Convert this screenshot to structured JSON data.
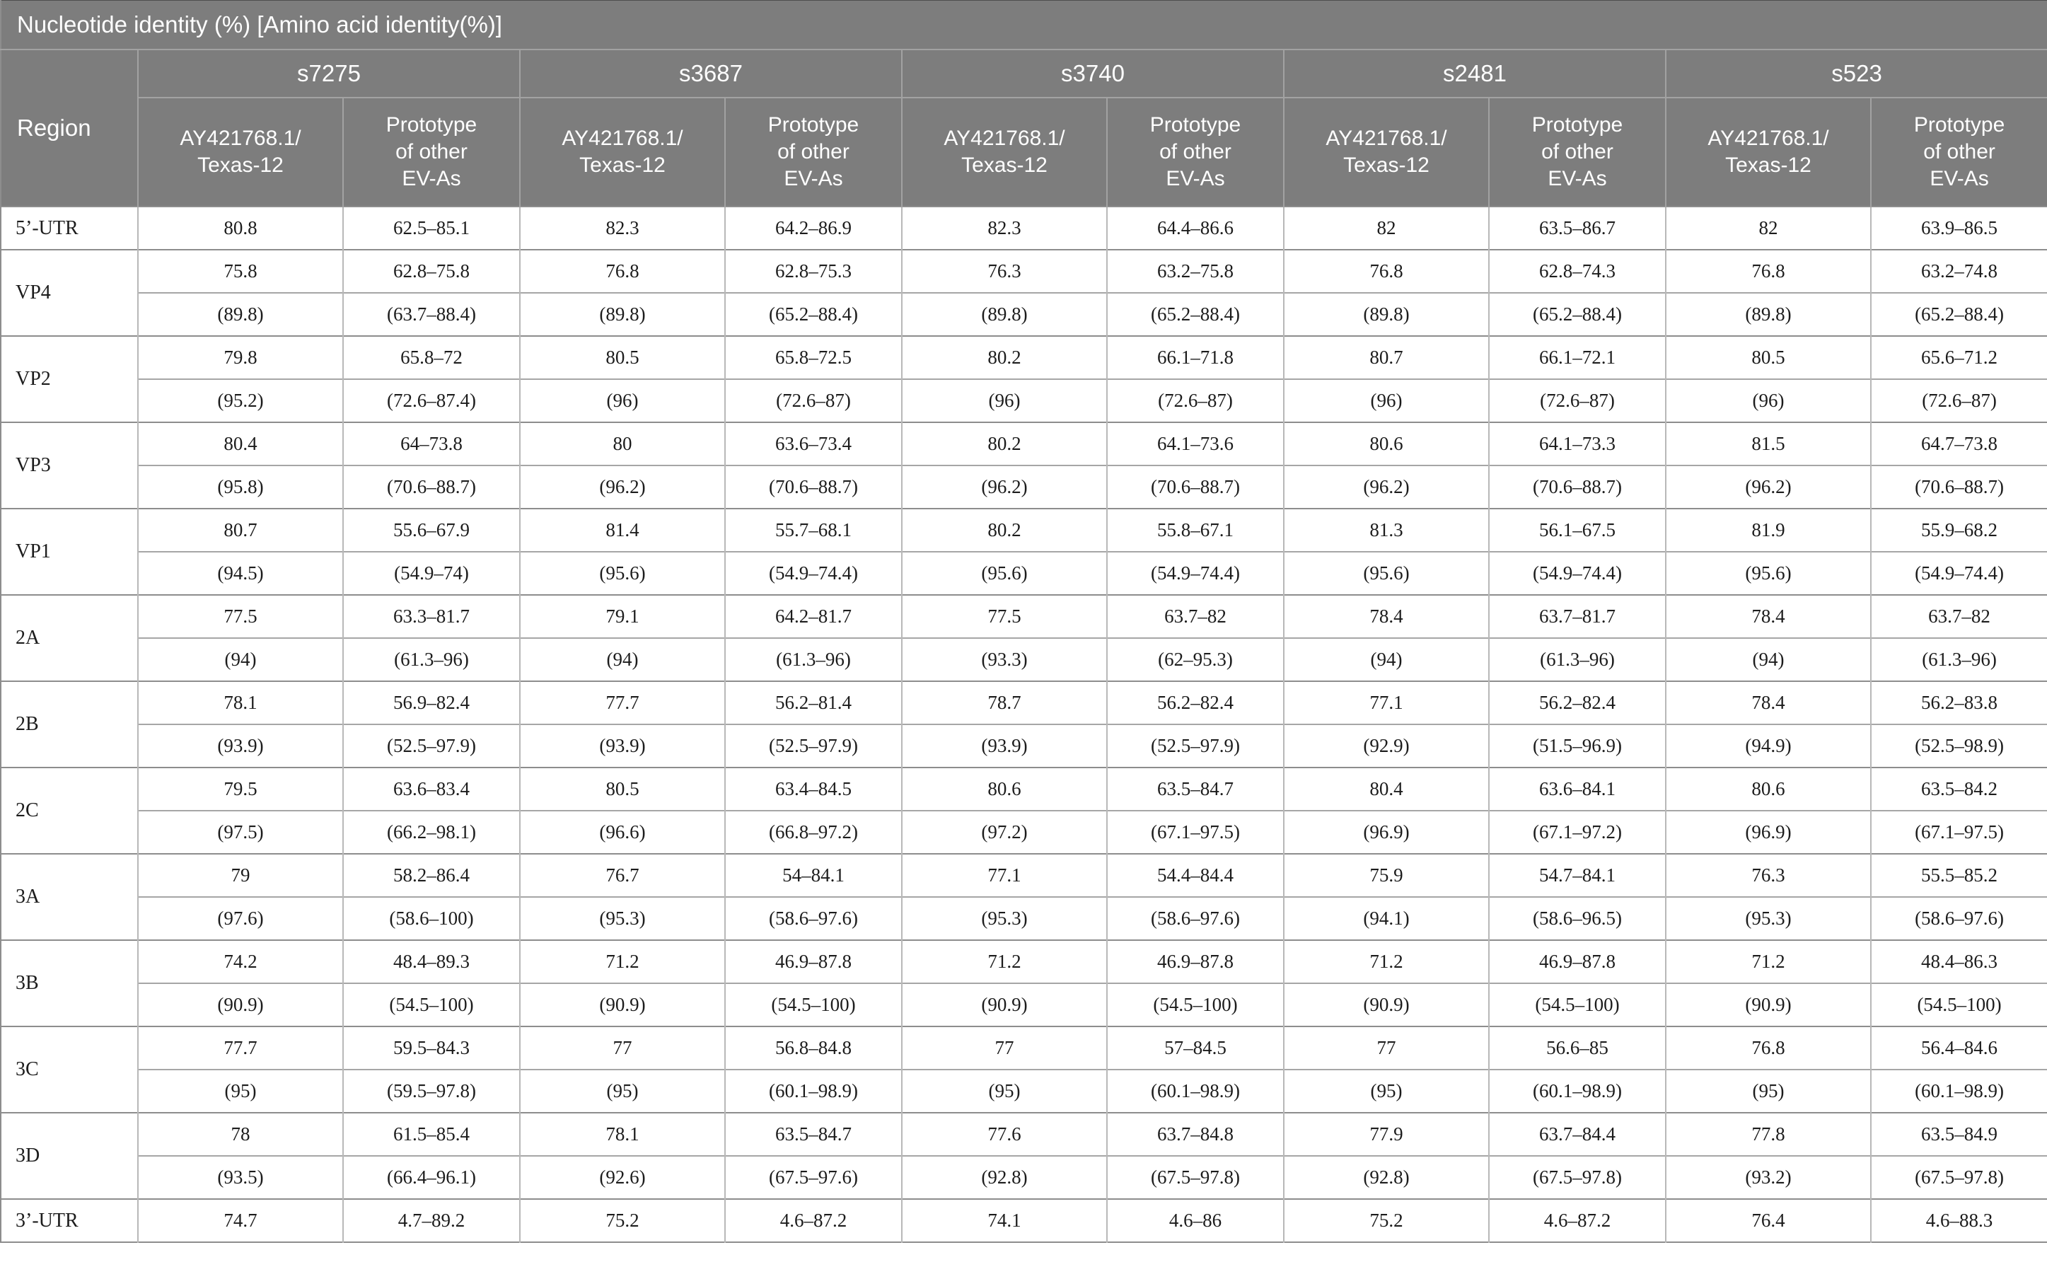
{
  "title": "Nucleotide identity (%) [Amino acid identity(%)]",
  "colors": {
    "header_bg": "#7d7d7d",
    "header_text": "#ffffff",
    "body_text": "#1c1c1c",
    "grid_group_line": "#8d8d8d",
    "grid_inner_line": "#a6a6a6",
    "grid_vertical_line": "#b8b8b8"
  },
  "table": {
    "region_header": "Region",
    "samples": [
      "s7275",
      "s3687",
      "s3740",
      "s2481",
      "s523"
    ],
    "sub_headers": [
      "AY421768.1/\nTexas-12",
      "Prototype\nof other\nEV-As"
    ],
    "rows": [
      {
        "region": "5’-UTR",
        "nt": [
          "80.8",
          "62.5–85.1",
          "82.3",
          "64.2–86.9",
          "82.3",
          "64.4–86.6",
          "82",
          "63.5–86.7",
          "82",
          "63.9–86.5"
        ]
      },
      {
        "region": "VP4",
        "nt": [
          "75.8",
          "62.8–75.8",
          "76.8",
          "62.8–75.3",
          "76.3",
          "63.2–75.8",
          "76.8",
          "62.8–74.3",
          "76.8",
          "63.2–74.8"
        ],
        "aa": [
          "(89.8)",
          "(63.7–88.4)",
          "(89.8)",
          "(65.2–88.4)",
          "(89.8)",
          "(65.2–88.4)",
          "(89.8)",
          "(65.2–88.4)",
          "(89.8)",
          "(65.2–88.4)"
        ]
      },
      {
        "region": "VP2",
        "nt": [
          "79.8",
          "65.8–72",
          "80.5",
          "65.8–72.5",
          "80.2",
          "66.1–71.8",
          "80.7",
          "66.1–72.1",
          "80.5",
          "65.6–71.2"
        ],
        "aa": [
          "(95.2)",
          "(72.6–87.4)",
          "(96)",
          "(72.6–87)",
          "(96)",
          "(72.6–87)",
          "(96)",
          "(72.6–87)",
          "(96)",
          "(72.6–87)"
        ]
      },
      {
        "region": "VP3",
        "nt": [
          "80.4",
          "64–73.8",
          "80",
          "63.6–73.4",
          "80.2",
          "64.1–73.6",
          "80.6",
          "64.1–73.3",
          "81.5",
          "64.7–73.8"
        ],
        "aa": [
          "(95.8)",
          "(70.6–88.7)",
          "(96.2)",
          "(70.6–88.7)",
          "(96.2)",
          "(70.6–88.7)",
          "(96.2)",
          "(70.6–88.7)",
          "(96.2)",
          "(70.6–88.7)"
        ]
      },
      {
        "region": "VP1",
        "nt": [
          "80.7",
          "55.6–67.9",
          "81.4",
          "55.7–68.1",
          "80.2",
          "55.8–67.1",
          "81.3",
          "56.1–67.5",
          "81.9",
          "55.9–68.2"
        ],
        "aa": [
          "(94.5)",
          "(54.9–74)",
          "(95.6)",
          "(54.9–74.4)",
          "(95.6)",
          "(54.9–74.4)",
          "(95.6)",
          "(54.9–74.4)",
          "(95.6)",
          "(54.9–74.4)"
        ]
      },
      {
        "region": "2A",
        "nt": [
          "77.5",
          "63.3–81.7",
          "79.1",
          "64.2–81.7",
          "77.5",
          "63.7–82",
          "78.4",
          "63.7–81.7",
          "78.4",
          "63.7–82"
        ],
        "aa": [
          "(94)",
          "(61.3–96)",
          "(94)",
          "(61.3–96)",
          "(93.3)",
          "(62–95.3)",
          "(94)",
          "(61.3–96)",
          "(94)",
          "(61.3–96)"
        ]
      },
      {
        "region": "2B",
        "nt": [
          "78.1",
          "56.9–82.4",
          "77.7",
          "56.2–81.4",
          "78.7",
          "56.2–82.4",
          "77.1",
          "56.2–82.4",
          "78.4",
          "56.2–83.8"
        ],
        "aa": [
          "(93.9)",
          "(52.5–97.9)",
          "(93.9)",
          "(52.5–97.9)",
          "(93.9)",
          "(52.5–97.9)",
          "(92.9)",
          "(51.5–96.9)",
          "(94.9)",
          "(52.5–98.9)"
        ]
      },
      {
        "region": "2C",
        "nt": [
          "79.5",
          "63.6–83.4",
          "80.5",
          "63.4–84.5",
          "80.6",
          "63.5–84.7",
          "80.4",
          "63.6–84.1",
          "80.6",
          "63.5–84.2"
        ],
        "aa": [
          "(97.5)",
          "(66.2–98.1)",
          "(96.6)",
          "(66.8–97.2)",
          "(97.2)",
          "(67.1–97.5)",
          "(96.9)",
          "(67.1–97.2)",
          "(96.9)",
          "(67.1–97.5)"
        ]
      },
      {
        "region": "3A",
        "nt": [
          "79",
          "58.2–86.4",
          "76.7",
          "54–84.1",
          "77.1",
          "54.4–84.4",
          "75.9",
          "54.7–84.1",
          "76.3",
          "55.5–85.2"
        ],
        "aa": [
          "(97.6)",
          "(58.6–100)",
          "(95.3)",
          "(58.6–97.6)",
          "(95.3)",
          "(58.6–97.6)",
          "(94.1)",
          "(58.6–96.5)",
          "(95.3)",
          "(58.6–97.6)"
        ]
      },
      {
        "region": "3B",
        "nt": [
          "74.2",
          "48.4–89.3",
          "71.2",
          "46.9–87.8",
          "71.2",
          "46.9–87.8",
          "71.2",
          "46.9–87.8",
          "71.2",
          "48.4–86.3"
        ],
        "aa": [
          "(90.9)",
          "(54.5–100)",
          "(90.9)",
          "(54.5–100)",
          "(90.9)",
          "(54.5–100)",
          "(90.9)",
          "(54.5–100)",
          "(90.9)",
          "(54.5–100)"
        ]
      },
      {
        "region": "3C",
        "nt": [
          "77.7",
          "59.5–84.3",
          "77",
          "56.8–84.8",
          "77",
          "57–84.5",
          "77",
          "56.6–85",
          "76.8",
          "56.4–84.6"
        ],
        "aa": [
          "(95)",
          "(59.5–97.8)",
          "(95)",
          "(60.1–98.9)",
          "(95)",
          "(60.1–98.9)",
          "(95)",
          "(60.1–98.9)",
          "(95)",
          "(60.1–98.9)"
        ]
      },
      {
        "region": "3D",
        "nt": [
          "78",
          "61.5–85.4",
          "78.1",
          "63.5–84.7",
          "77.6",
          "63.7–84.8",
          "77.9",
          "63.7–84.4",
          "77.8",
          "63.5–84.9"
        ],
        "aa": [
          "(93.5)",
          "(66.4–96.1)",
          "(92.6)",
          "(67.5–97.6)",
          "(92.8)",
          "(67.5–97.8)",
          "(92.8)",
          "(67.5–97.8)",
          "(93.2)",
          "(67.5–97.8)"
        ]
      },
      {
        "region": "3’-UTR",
        "nt": [
          "74.7",
          "4.7–89.2",
          "75.2",
          "4.6–87.2",
          "74.1",
          "4.6–86",
          "75.2",
          "4.6–87.2",
          "76.4",
          "4.6–88.3"
        ]
      }
    ]
  }
}
